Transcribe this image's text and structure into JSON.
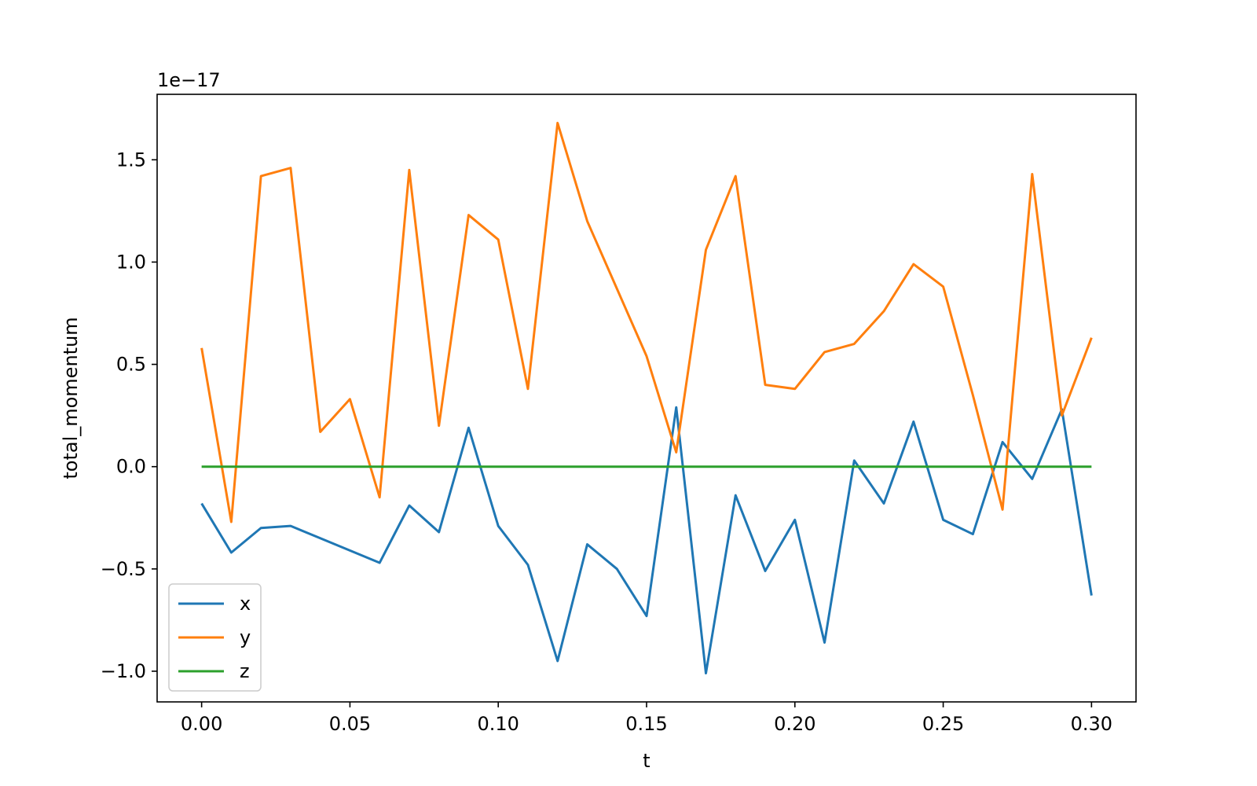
{
  "chart_data": {
    "type": "line",
    "xlabel": "t",
    "ylabel": "total_momentum",
    "y_offset_label": "1e−17",
    "xlim": [
      -0.015,
      0.315
    ],
    "ylim": [
      -1.15,
      1.82
    ],
    "xticks": [
      0.0,
      0.05,
      0.1,
      0.15,
      0.2,
      0.25,
      0.3
    ],
    "xtick_labels": [
      "0.00",
      "0.05",
      "0.10",
      "0.15",
      "0.20",
      "0.25",
      "0.30"
    ],
    "yticks": [
      -1.0,
      -0.5,
      0.0,
      0.5,
      1.0,
      1.5
    ],
    "ytick_labels": [
      "−1.0",
      "−0.5",
      "0.0",
      "0.5",
      "1.0",
      "1.5"
    ],
    "grid": false,
    "legend_position": "lower-left",
    "x": [
      0.0,
      0.01,
      0.02,
      0.03,
      0.04,
      0.05,
      0.06,
      0.07,
      0.08,
      0.09,
      0.1,
      0.11,
      0.12,
      0.13,
      0.14,
      0.15,
      0.16,
      0.17,
      0.18,
      0.19,
      0.2,
      0.21,
      0.22,
      0.23,
      0.24,
      0.25,
      0.26,
      0.27,
      0.28,
      0.29,
      0.3
    ],
    "series": [
      {
        "name": "x",
        "color": "#1f77b4",
        "values": [
          -0.18,
          -0.42,
          -0.3,
          -0.29,
          -0.35,
          -0.41,
          -0.47,
          -0.19,
          -0.32,
          0.19,
          -0.29,
          -0.48,
          -0.95,
          -0.38,
          -0.5,
          -0.73,
          0.29,
          -1.01,
          -0.14,
          -0.51,
          -0.26,
          -0.86,
          0.03,
          -0.18,
          0.22,
          -0.26,
          -0.33,
          0.12,
          -0.06,
          0.28,
          -0.63
        ]
      },
      {
        "name": "y",
        "color": "#ff7f0e",
        "values": [
          0.58,
          -0.27,
          1.42,
          1.46,
          0.17,
          0.33,
          -0.15,
          1.45,
          0.2,
          1.23,
          1.11,
          0.38,
          1.68,
          1.2,
          0.87,
          0.54,
          0.07,
          1.06,
          1.42,
          0.4,
          0.38,
          0.56,
          0.6,
          0.76,
          0.99,
          0.88,
          0.35,
          -0.21,
          1.43,
          0.25,
          0.63
        ]
      },
      {
        "name": "z",
        "color": "#2ca02c",
        "values": [
          0.0,
          0.0,
          0.0,
          0.0,
          0.0,
          0.0,
          0.0,
          0.0,
          0.0,
          0.0,
          0.0,
          0.0,
          0.0,
          0.0,
          0.0,
          0.0,
          0.0,
          0.0,
          0.0,
          0.0,
          0.0,
          0.0,
          0.0,
          0.0,
          0.0,
          0.0,
          0.0,
          0.0,
          0.0,
          0.0,
          0.0
        ]
      }
    ]
  }
}
